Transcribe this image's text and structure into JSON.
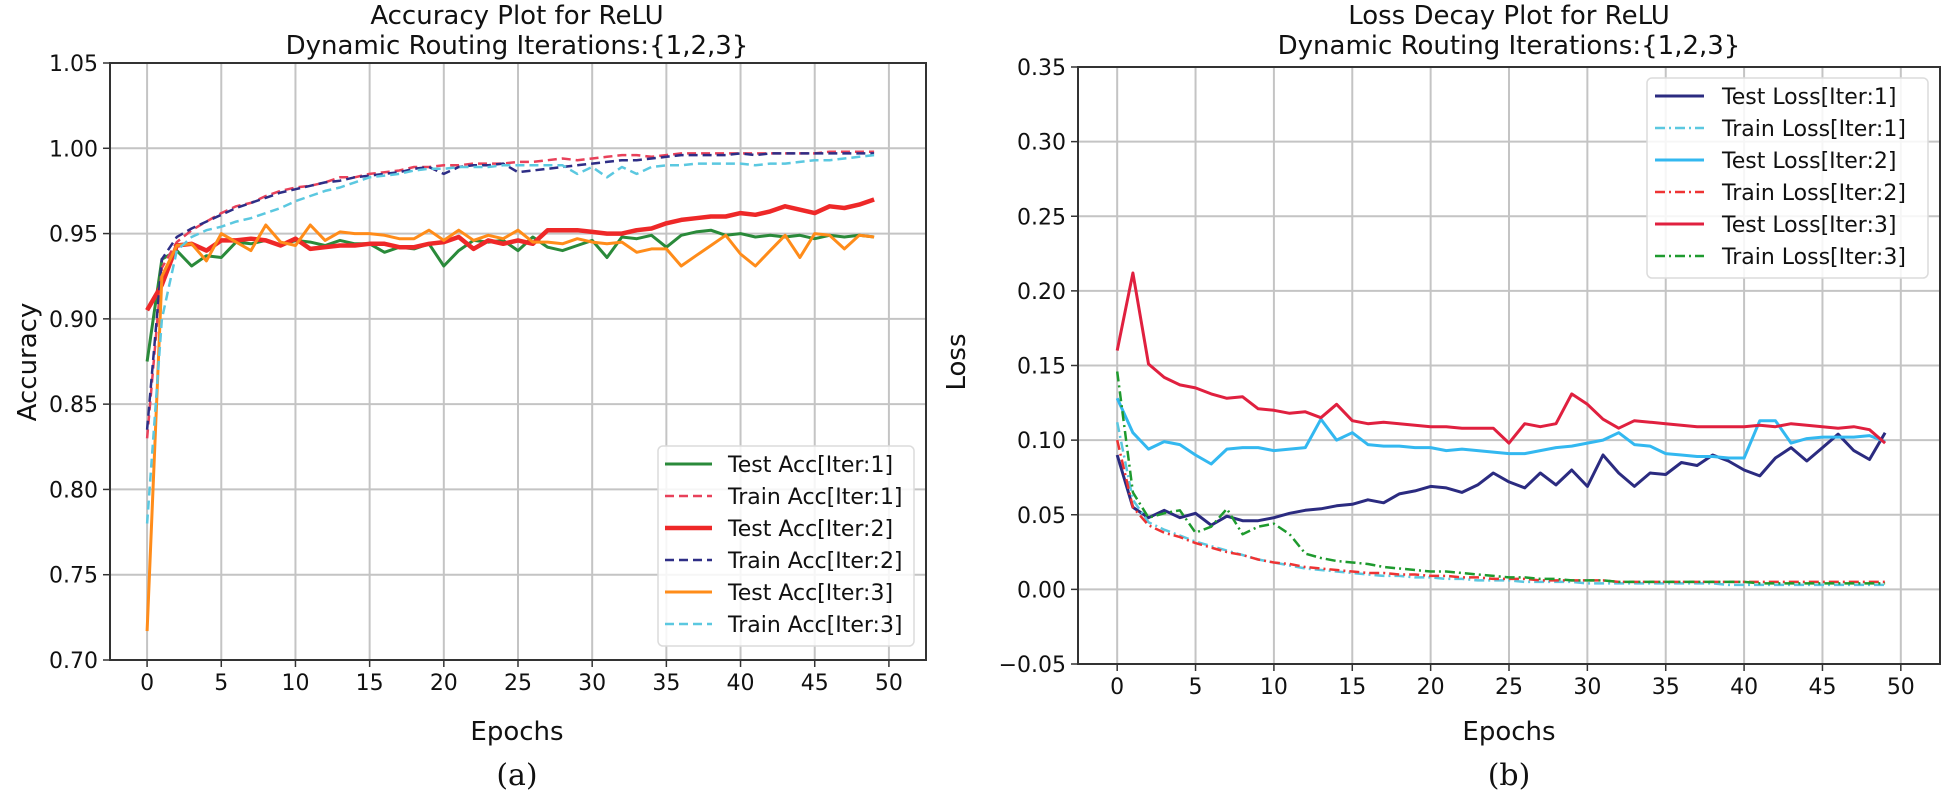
{
  "chart_data": [
    {
      "type": "line",
      "title": "Accuracy Plot for ReLU",
      "subtitle": "Dynamic Routing Iterations:{1,2,3}",
      "xlabel": "Epochs",
      "ylabel": "Accuracy",
      "caption": "(a)",
      "xlim": [
        -2.5,
        52.5
      ],
      "ylim": [
        0.7,
        1.05
      ],
      "xticks": [
        0,
        5,
        10,
        15,
        20,
        25,
        30,
        35,
        40,
        45,
        50
      ],
      "yticks": [
        "0.70",
        "0.75",
        "0.80",
        "0.85",
        "0.90",
        "0.95",
        "1.00",
        "1.05"
      ],
      "grid": true,
      "legend_position": "lower-right",
      "series": [
        {
          "name": "Test Acc[Iter:1]",
          "color": "#2a8a3a",
          "style": "solid",
          "width": 3,
          "values": [
            0.875,
            0.935,
            0.94,
            0.931,
            0.937,
            0.936,
            0.945,
            0.944,
            0.946,
            0.943,
            0.946,
            0.945,
            0.943,
            0.946,
            0.944,
            0.944,
            0.939,
            0.942,
            0.941,
            0.944,
            0.931,
            0.94,
            0.946,
            0.945,
            0.946,
            0.94,
            0.948,
            0.942,
            0.94,
            0.943,
            0.946,
            0.936,
            0.948,
            0.947,
            0.949,
            0.942,
            0.949,
            0.951,
            0.952,
            0.949,
            0.95,
            0.948,
            0.949,
            0.948,
            0.949,
            0.947,
            0.949,
            0.948,
            0.949,
            0.948
          ]
        },
        {
          "name": "Train Acc[Iter:1]",
          "color": "#e8415a",
          "style": "dashed",
          "width": 2.5,
          "values": [
            0.83,
            0.93,
            0.945,
            0.952,
            0.957,
            0.962,
            0.966,
            0.968,
            0.972,
            0.975,
            0.977,
            0.978,
            0.98,
            0.983,
            0.983,
            0.985,
            0.986,
            0.987,
            0.989,
            0.989,
            0.99,
            0.99,
            0.991,
            0.991,
            0.991,
            0.992,
            0.992,
            0.993,
            0.994,
            0.993,
            0.994,
            0.995,
            0.996,
            0.996,
            0.995,
            0.996,
            0.997,
            0.997,
            0.997,
            0.997,
            0.997,
            0.997,
            0.997,
            0.997,
            0.997,
            0.997,
            0.998,
            0.998,
            0.998,
            0.998
          ]
        },
        {
          "name": "Test Acc[Iter:2]",
          "color": "#ee2828",
          "style": "solid",
          "width": 4.5,
          "values": [
            0.905,
            0.92,
            0.943,
            0.944,
            0.94,
            0.946,
            0.946,
            0.947,
            0.946,
            0.943,
            0.947,
            0.941,
            0.942,
            0.943,
            0.943,
            0.944,
            0.944,
            0.942,
            0.942,
            0.944,
            0.945,
            0.948,
            0.941,
            0.946,
            0.944,
            0.946,
            0.944,
            0.952,
            0.952,
            0.952,
            0.951,
            0.95,
            0.95,
            0.952,
            0.953,
            0.956,
            0.958,
            0.959,
            0.96,
            0.96,
            0.962,
            0.961,
            0.963,
            0.966,
            0.964,
            0.962,
            0.966,
            0.965,
            0.967,
            0.97
          ]
        },
        {
          "name": "Train Acc[Iter:2]",
          "color": "#2e2e86",
          "style": "dashed",
          "width": 2.5,
          "values": [
            0.835,
            0.935,
            0.948,
            0.953,
            0.957,
            0.961,
            0.965,
            0.968,
            0.971,
            0.974,
            0.976,
            0.978,
            0.98,
            0.981,
            0.983,
            0.984,
            0.985,
            0.986,
            0.988,
            0.989,
            0.985,
            0.989,
            0.99,
            0.99,
            0.991,
            0.986,
            0.987,
            0.988,
            0.989,
            0.99,
            0.991,
            0.992,
            0.993,
            0.993,
            0.994,
            0.995,
            0.996,
            0.996,
            0.996,
            0.996,
            0.997,
            0.996,
            0.997,
            0.997,
            0.997,
            0.997,
            0.997,
            0.997,
            0.997,
            0.997
          ]
        },
        {
          "name": "Test Acc[Iter:3]",
          "color": "#ff8c1a",
          "style": "solid",
          "width": 3,
          "values": [
            0.717,
            0.925,
            0.943,
            0.944,
            0.934,
            0.95,
            0.945,
            0.94,
            0.955,
            0.945,
            0.943,
            0.955,
            0.946,
            0.951,
            0.95,
            0.95,
            0.949,
            0.947,
            0.947,
            0.952,
            0.946,
            0.952,
            0.946,
            0.949,
            0.947,
            0.952,
            0.945,
            0.945,
            0.944,
            0.947,
            0.945,
            0.944,
            0.945,
            0.939,
            0.941,
            0.941,
            0.931,
            0.937,
            0.943,
            0.949,
            0.938,
            0.931,
            0.94,
            0.949,
            0.936,
            0.95,
            0.949,
            0.941,
            0.949,
            0.948
          ]
        },
        {
          "name": "Train Acc[Iter:3]",
          "color": "#5bc8e0",
          "style": "dashed",
          "width": 2.5,
          "values": [
            0.78,
            0.9,
            0.94,
            0.948,
            0.952,
            0.954,
            0.957,
            0.959,
            0.962,
            0.965,
            0.969,
            0.972,
            0.975,
            0.977,
            0.98,
            0.983,
            0.984,
            0.985,
            0.987,
            0.988,
            0.988,
            0.989,
            0.989,
            0.989,
            0.99,
            0.99,
            0.99,
            0.99,
            0.99,
            0.985,
            0.989,
            0.983,
            0.989,
            0.985,
            0.989,
            0.99,
            0.99,
            0.991,
            0.991,
            0.991,
            0.991,
            0.99,
            0.991,
            0.991,
            0.992,
            0.993,
            0.993,
            0.994,
            0.995,
            0.996
          ]
        }
      ]
    },
    {
      "type": "line",
      "title": "Loss Decay Plot for ReLU",
      "subtitle": "Dynamic Routing Iterations:{1,2,3}",
      "xlabel": "Epochs",
      "ylabel": "Loss",
      "caption": "(b)",
      "xlim": [
        -2.5,
        52.5
      ],
      "ylim": [
        -0.05,
        0.35
      ],
      "xticks": [
        0,
        5,
        10,
        15,
        20,
        25,
        30,
        35,
        40,
        45,
        50
      ],
      "yticks": [
        "−0.05",
        "0.00",
        "0.05",
        "0.10",
        "0.15",
        "0.20",
        "0.25",
        "0.30",
        "0.35"
      ],
      "grid": true,
      "legend_position": "upper-right",
      "series": [
        {
          "name": "Test Loss[Iter:1]",
          "color": "#2b2b80",
          "style": "solid",
          "width": 3,
          "values": [
            0.09,
            0.055,
            0.048,
            0.053,
            0.048,
            0.051,
            0.043,
            0.049,
            0.046,
            0.046,
            0.048,
            0.051,
            0.053,
            0.054,
            0.056,
            0.057,
            0.06,
            0.058,
            0.064,
            0.066,
            0.069,
            0.068,
            0.065,
            0.07,
            0.078,
            0.072,
            0.068,
            0.078,
            0.07,
            0.08,
            0.069,
            0.09,
            0.078,
            0.069,
            0.078,
            0.077,
            0.085,
            0.083,
            0.09,
            0.086,
            0.08,
            0.076,
            0.088,
            0.095,
            0.086,
            0.095,
            0.104,
            0.093,
            0.087,
            0.105
          ]
        },
        {
          "name": "Train Loss[Iter:1]",
          "color": "#5bc8e0",
          "style": "dashdot",
          "width": 2.5,
          "values": [
            0.112,
            0.06,
            0.045,
            0.04,
            0.036,
            0.032,
            0.029,
            0.026,
            0.023,
            0.02,
            0.018,
            0.016,
            0.014,
            0.013,
            0.012,
            0.011,
            0.01,
            0.009,
            0.009,
            0.008,
            0.008,
            0.007,
            0.007,
            0.006,
            0.006,
            0.006,
            0.005,
            0.005,
            0.005,
            0.005,
            0.004,
            0.004,
            0.004,
            0.004,
            0.004,
            0.004,
            0.004,
            0.004,
            0.004,
            0.003,
            0.003,
            0.003,
            0.003,
            0.003,
            0.003,
            0.003,
            0.003,
            0.003,
            0.003,
            0.003
          ]
        },
        {
          "name": "Test Loss[Iter:2]",
          "color": "#33b8f0",
          "style": "solid",
          "width": 3,
          "values": [
            0.128,
            0.105,
            0.094,
            0.099,
            0.097,
            0.09,
            0.084,
            0.094,
            0.095,
            0.095,
            0.093,
            0.094,
            0.095,
            0.114,
            0.1,
            0.105,
            0.097,
            0.096,
            0.096,
            0.095,
            0.095,
            0.093,
            0.094,
            0.093,
            0.092,
            0.091,
            0.091,
            0.093,
            0.095,
            0.096,
            0.098,
            0.1,
            0.105,
            0.097,
            0.096,
            0.091,
            0.09,
            0.089,
            0.089,
            0.088,
            0.088,
            0.113,
            0.113,
            0.098,
            0.101,
            0.102,
            0.102,
            0.102,
            0.103,
            0.099
          ]
        },
        {
          "name": "Train Loss[Iter:2]",
          "color": "#ee3333",
          "style": "dashdot",
          "width": 2.5,
          "values": [
            0.1,
            0.055,
            0.043,
            0.038,
            0.035,
            0.031,
            0.028,
            0.025,
            0.023,
            0.02,
            0.018,
            0.017,
            0.015,
            0.014,
            0.013,
            0.012,
            0.011,
            0.011,
            0.01,
            0.01,
            0.009,
            0.009,
            0.008,
            0.008,
            0.007,
            0.007,
            0.007,
            0.006,
            0.006,
            0.006,
            0.006,
            0.006,
            0.005,
            0.005,
            0.005,
            0.005,
            0.005,
            0.005,
            0.005,
            0.005,
            0.005,
            0.005,
            0.005,
            0.005,
            0.005,
            0.005,
            0.005,
            0.005,
            0.005,
            0.005
          ]
        },
        {
          "name": "Test Loss[Iter:3]",
          "color": "#e0203f",
          "style": "solid",
          "width": 3,
          "values": [
            0.16,
            0.212,
            0.151,
            0.142,
            0.137,
            0.135,
            0.131,
            0.128,
            0.129,
            0.121,
            0.12,
            0.118,
            0.119,
            0.115,
            0.124,
            0.113,
            0.111,
            0.112,
            0.111,
            0.11,
            0.109,
            0.109,
            0.108,
            0.108,
            0.108,
            0.098,
            0.111,
            0.109,
            0.111,
            0.131,
            0.124,
            0.114,
            0.108,
            0.113,
            0.112,
            0.111,
            0.11,
            0.109,
            0.109,
            0.109,
            0.109,
            0.11,
            0.109,
            0.111,
            0.11,
            0.109,
            0.108,
            0.109,
            0.107,
            0.098
          ]
        },
        {
          "name": "Train Loss[Iter:3]",
          "color": "#1e9a2e",
          "style": "dashdot",
          "width": 2.5,
          "values": [
            0.146,
            0.065,
            0.048,
            0.051,
            0.053,
            0.038,
            0.042,
            0.054,
            0.037,
            0.042,
            0.044,
            0.037,
            0.024,
            0.021,
            0.019,
            0.018,
            0.017,
            0.015,
            0.014,
            0.013,
            0.012,
            0.012,
            0.011,
            0.01,
            0.009,
            0.008,
            0.008,
            0.007,
            0.007,
            0.006,
            0.006,
            0.006,
            0.005,
            0.005,
            0.005,
            0.005,
            0.005,
            0.005,
            0.005,
            0.005,
            0.005,
            0.004,
            0.004,
            0.004,
            0.004,
            0.004,
            0.004,
            0.004,
            0.004,
            0.004
          ]
        }
      ]
    }
  ]
}
